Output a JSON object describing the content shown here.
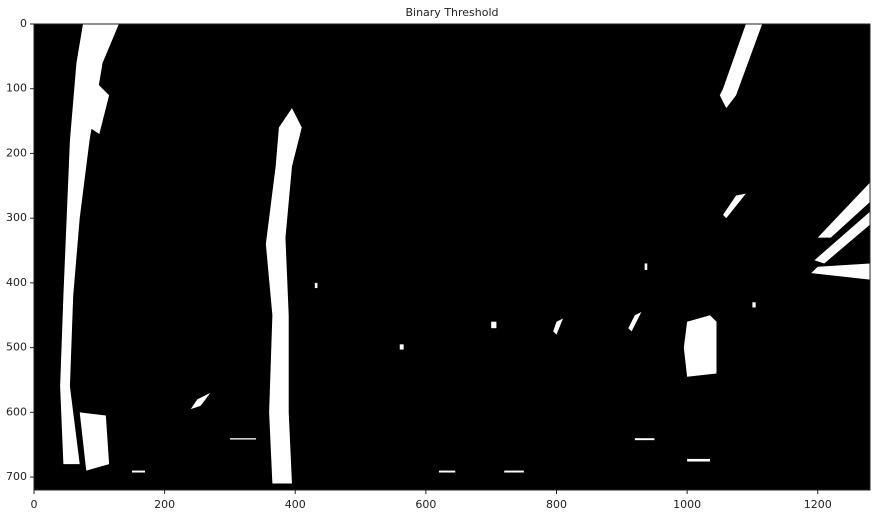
{
  "chart_data": {
    "type": "image",
    "title": "Binary Threshold",
    "xlim": [
      0,
      1280
    ],
    "xticks": [
      0,
      200,
      400,
      600,
      800,
      1000,
      1200
    ],
    "ylim": [
      720,
      0
    ],
    "yticks": [
      0,
      100,
      200,
      300,
      400,
      500,
      600,
      700
    ]
  }
}
